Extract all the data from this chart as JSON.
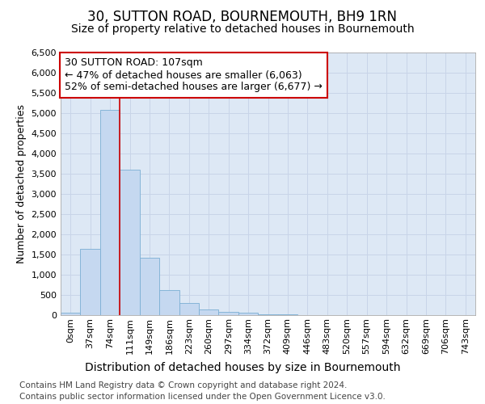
{
  "title1": "30, SUTTON ROAD, BOURNEMOUTH, BH9 1RN",
  "title2": "Size of property relative to detached houses in Bournemouth",
  "xlabel": "Distribution of detached houses by size in Bournemouth",
  "ylabel": "Number of detached properties",
  "footer1": "Contains HM Land Registry data © Crown copyright and database right 2024.",
  "footer2": "Contains public sector information licensed under the Open Government Licence v3.0.",
  "bin_labels": [
    "0sqm",
    "37sqm",
    "74sqm",
    "111sqm",
    "149sqm",
    "186sqm",
    "223sqm",
    "260sqm",
    "297sqm",
    "334sqm",
    "372sqm",
    "409sqm",
    "446sqm",
    "483sqm",
    "520sqm",
    "557sqm",
    "594sqm",
    "632sqm",
    "669sqm",
    "706sqm",
    "743sqm"
  ],
  "bar_values": [
    70,
    1650,
    5080,
    3600,
    1420,
    620,
    300,
    145,
    90,
    55,
    30,
    15,
    10,
    4,
    2,
    1,
    1,
    0,
    0,
    0,
    0
  ],
  "bar_color": "#c5d8f0",
  "bar_edge_color": "#7bafd4",
  "annotation_text": "30 SUTTON ROAD: 107sqm\n← 47% of detached houses are smaller (6,063)\n52% of semi-detached houses are larger (6,677) →",
  "annotation_box_color": "white",
  "annotation_box_edge_color": "#cc0000",
  "vline_color": "#cc0000",
  "vline_x": 2.5,
  "ylim": [
    0,
    6500
  ],
  "yticks": [
    0,
    500,
    1000,
    1500,
    2000,
    2500,
    3000,
    3500,
    4000,
    4500,
    5000,
    5500,
    6000,
    6500
  ],
  "grid_color": "#c8d4e8",
  "plot_bg_color": "#dde8f5",
  "title1_fontsize": 12,
  "title2_fontsize": 10,
  "xlabel_fontsize": 10,
  "ylabel_fontsize": 9,
  "footer_fontsize": 7.5,
  "annotation_fontsize": 9,
  "tick_fontsize": 8
}
